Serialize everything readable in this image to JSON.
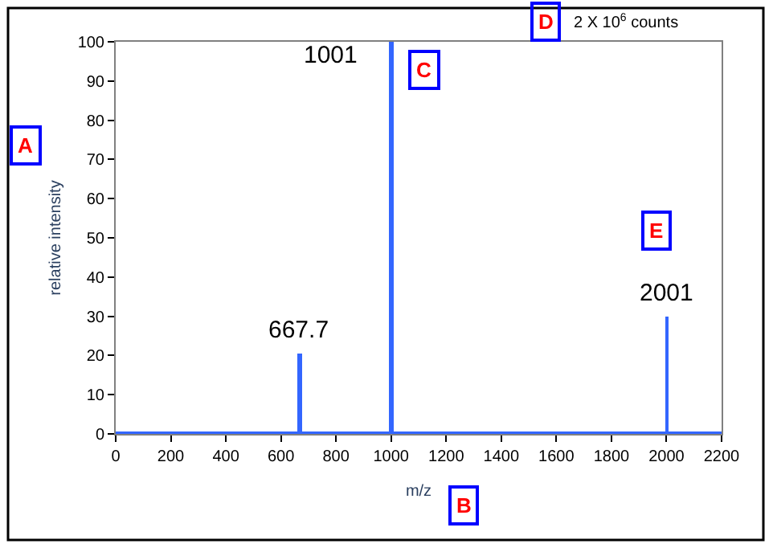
{
  "chart_data": {
    "type": "bar",
    "xlabel": "m/z",
    "ylabel": "relative intensity",
    "x": [
      667.7,
      1001,
      2001
    ],
    "series": [
      {
        "color": "#3366ff",
        "values": [
          20.5,
          100,
          30
        ]
      }
    ],
    "xlim": [
      0,
      2200
    ],
    "xticks": [
      0,
      200,
      400,
      600,
      800,
      1000,
      1200,
      1400,
      1600,
      1800,
      2000,
      2200
    ],
    "ylim": [
      0,
      100
    ],
    "yticks": [
      0,
      10,
      20,
      30,
      40,
      50,
      60,
      70,
      80,
      90,
      100
    ],
    "ref_lines": [
      {
        "axis": "y",
        "value": 0,
        "color": "#3366ff"
      }
    ],
    "annotations": [
      {
        "text": "667.7",
        "x": 667.7,
        "y": 20.5
      },
      {
        "text": "1001",
        "x": 1001,
        "y": 100
      },
      {
        "text": "2001",
        "x": 2001,
        "y": 30
      },
      "2 X 10$^{6}$ counts",
      "A",
      "B",
      "C",
      "D",
      "E"
    ]
  }
}
